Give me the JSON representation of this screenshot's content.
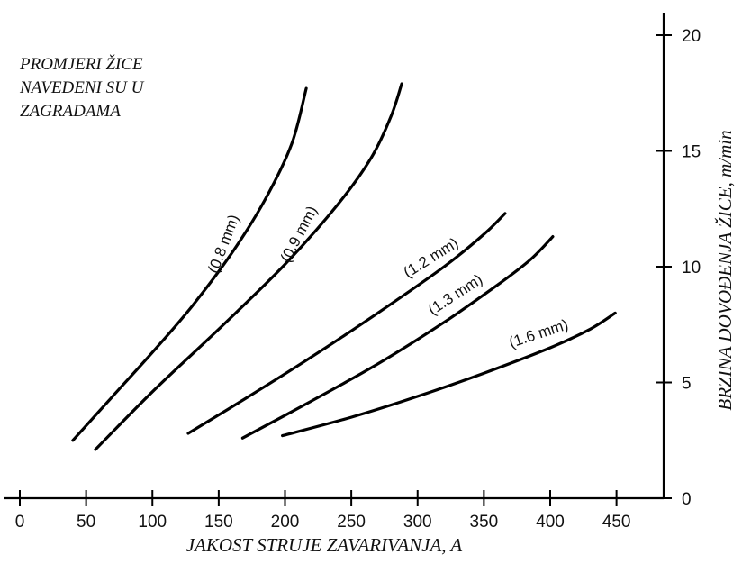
{
  "note": {
    "lines": [
      "PROMJERI ŽICE",
      "NAVEDENI SU U",
      "ZAGRADAMA"
    ]
  },
  "chart_data": {
    "type": "line",
    "xlabel": "JAKOST STRUJE ZAVARIVANJA, A",
    "ylabel": "BRZINA DOVOĐENJA ŽICE, m/min",
    "xlim": [
      0,
      480
    ],
    "ylim": [
      0,
      21
    ],
    "x_ticks": [
      "0",
      "50",
      "100",
      "150",
      "200",
      "250",
      "300",
      "350",
      "400",
      "450"
    ],
    "y_ticks": [
      "0",
      "5",
      "10",
      "15",
      "20"
    ],
    "grid": false,
    "series": [
      {
        "name": "(0.8 mm)",
        "x": [
          40,
          70,
          100,
          130,
          160,
          185,
          205,
          216
        ],
        "y": [
          2.5,
          4.4,
          6.3,
          8.3,
          10.6,
          12.9,
          15.3,
          17.7
        ]
      },
      {
        "name": "(0.9 mm)",
        "x": [
          57,
          100,
          150,
          200,
          240,
          265,
          280,
          288
        ],
        "y": [
          2.1,
          4.6,
          7.3,
          10.1,
          12.7,
          14.7,
          16.5,
          17.9
        ]
      },
      {
        "name": "(1.2 mm)",
        "x": [
          127,
          170,
          220,
          270,
          320,
          350,
          366
        ],
        "y": [
          2.8,
          4.3,
          6.1,
          8.0,
          10.0,
          11.4,
          12.3
        ]
      },
      {
        "name": "(1.3 mm)",
        "x": [
          168,
          220,
          270,
          320,
          360,
          385,
          402
        ],
        "y": [
          2.6,
          4.2,
          5.8,
          7.6,
          9.2,
          10.3,
          11.3
        ]
      },
      {
        "name": "(1.6 mm)",
        "x": [
          198,
          250,
          300,
          350,
          400,
          430,
          449
        ],
        "y": [
          2.7,
          3.5,
          4.4,
          5.4,
          6.5,
          7.3,
          8.0
        ]
      }
    ]
  }
}
